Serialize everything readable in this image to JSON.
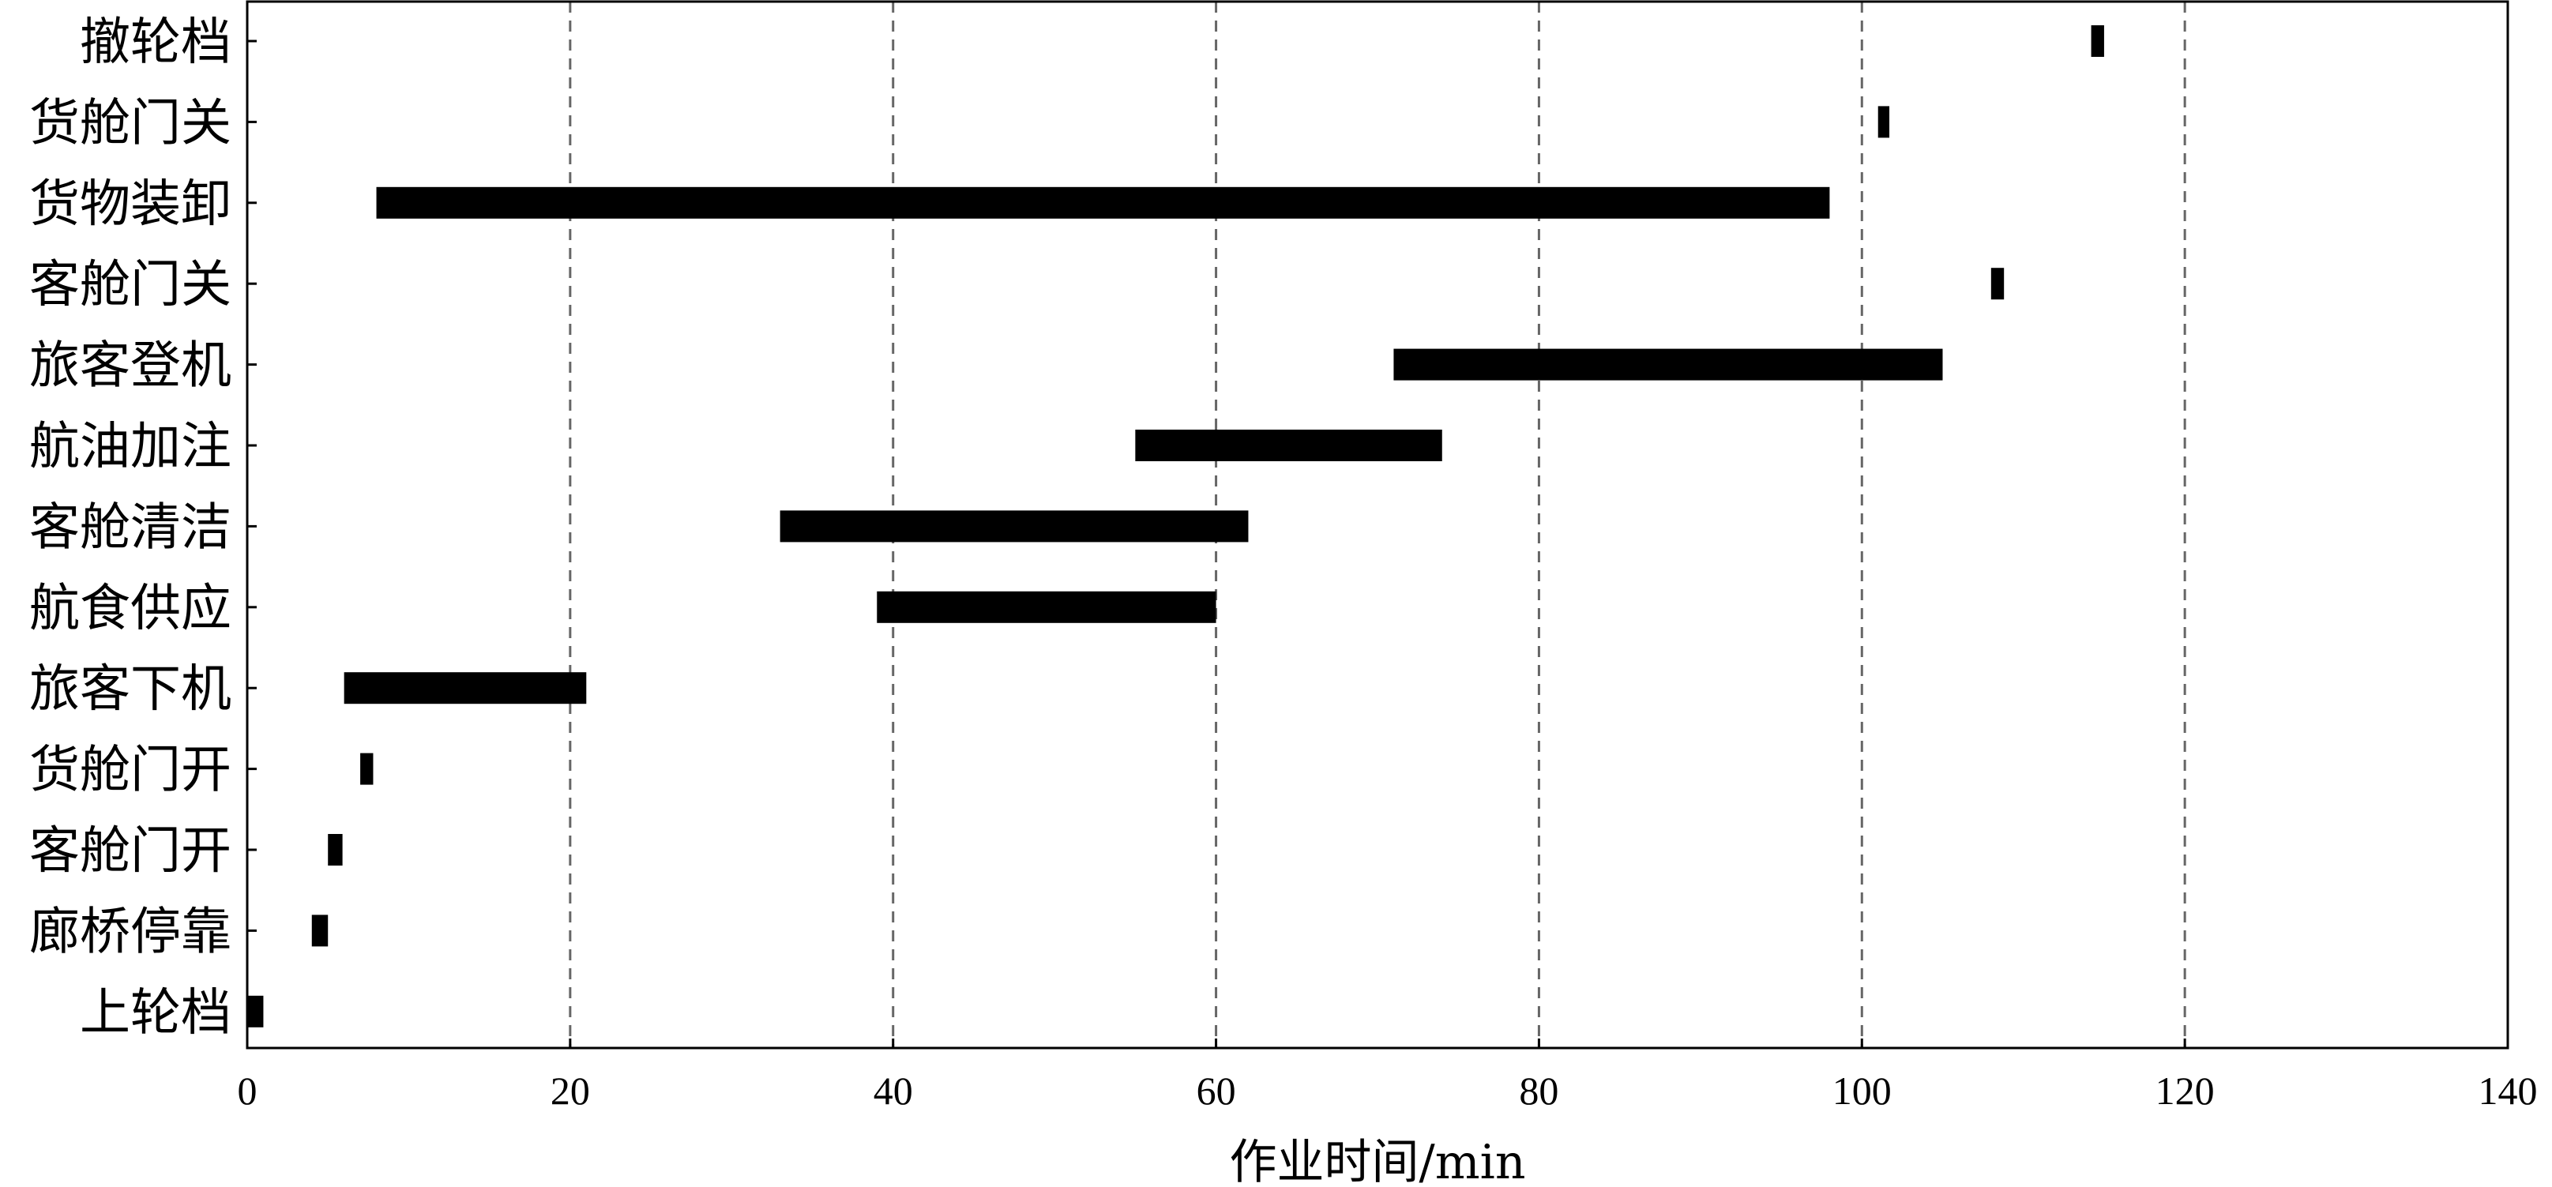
{
  "chart_data": {
    "type": "bar",
    "orientation": "horizontal",
    "subtype": "gantt",
    "xlabel": "作业时间/min",
    "ylabel": "",
    "xlim": [
      0,
      140
    ],
    "xticks": [
      0,
      20,
      40,
      60,
      80,
      100,
      120,
      140
    ],
    "grid": "vertical dashed at 20, 40, 60, 80, 100, 120",
    "categories": [
      "撤轮档",
      "货舱门关",
      "货物装卸",
      "客舱门关",
      "旅客登机",
      "航油加注",
      "客舱清洁",
      "航食供应",
      "旅客下机",
      "货舱门开",
      "客舱门开",
      "廊桥停靠",
      "上轮档"
    ],
    "tasks": [
      {
        "name": "撤轮档",
        "start": 114.2,
        "end": 115.0
      },
      {
        "name": "货舱门关",
        "start": 101.0,
        "end": 101.7
      },
      {
        "name": "货物装卸",
        "start": 8.0,
        "end": 98.0
      },
      {
        "name": "客舱门关",
        "start": 108.0,
        "end": 108.8
      },
      {
        "name": "旅客登机",
        "start": 71.0,
        "end": 105.0
      },
      {
        "name": "航油加注",
        "start": 55.0,
        "end": 74.0
      },
      {
        "name": "客舱清洁",
        "start": 33.0,
        "end": 62.0
      },
      {
        "name": "航食供应",
        "start": 39.0,
        "end": 60.0
      },
      {
        "name": "旅客下机",
        "start": 6.0,
        "end": 21.0
      },
      {
        "name": "货舱门开",
        "start": 7.0,
        "end": 7.8
      },
      {
        "name": "客舱门开",
        "start": 5.0,
        "end": 5.9
      },
      {
        "name": "廊桥停靠",
        "start": 4.0,
        "end": 5.0
      },
      {
        "name": "上轮档",
        "start": 0.0,
        "end": 1.0
      }
    ]
  }
}
